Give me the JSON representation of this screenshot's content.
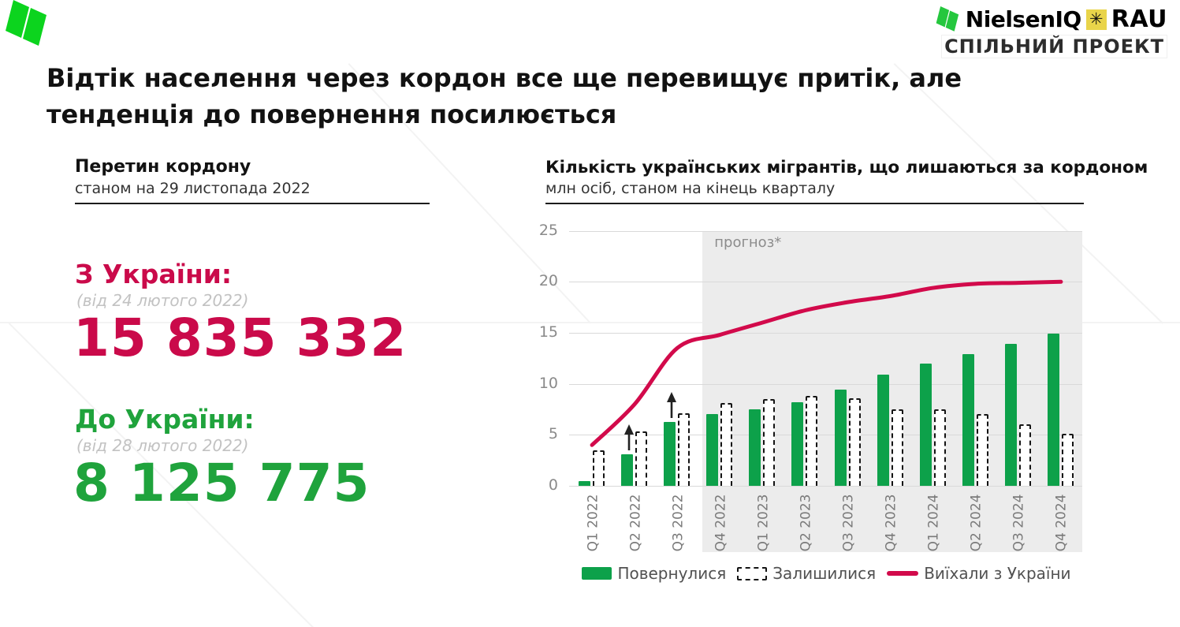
{
  "colors": {
    "brand_green_bright": "#0cd41e",
    "brand_green_mark": "#25c73e",
    "accent_crimson": "#ca0a4a",
    "accent_green": "#1fa33c",
    "bar_green": "#0da14a",
    "line_crimson": "#d20a4b",
    "rau_yellow": "#e9d44a",
    "forecast_bg": "#ececec",
    "gridline": "#d9d9d9"
  },
  "header": {
    "brand": "NielsenIQ",
    "asterisk_icon": "✳",
    "partner": "RAU",
    "subtitle": "СПІЛЬНИЙ ПРОЕКТ"
  },
  "title": {
    "line1": "Відтік населення через кордон все ще перевищує притік, але",
    "line2": "тенденція до повернення посилюється"
  },
  "border_stats": {
    "heading": "Перетин кордону",
    "as_of": "станом на 29 листопада 2022",
    "outflow": {
      "label": "З України:",
      "note": "(від 24 лютого 2022)",
      "value": "15 835 332"
    },
    "inflow": {
      "label": "До України:",
      "note": "(від 28 лютого 2022)",
      "value": "8 125 775"
    }
  },
  "chart": {
    "heading": "Кількість українських мігрантів, що лишаються за кордоном",
    "unit_note": "млн осіб, станом на кінець кварталу",
    "forecast_label": "прогноз*"
  },
  "chart_data": {
    "type": "bar",
    "title": "Кількість українських мігрантів, що лишаються за кордоном",
    "ylabel": "млн осіб",
    "ylim": [
      0,
      25
    ],
    "yticks": [
      0,
      5,
      10,
      15,
      20,
      25
    ],
    "grid": true,
    "legend_position": "bottom",
    "categories": [
      "Q1 2022",
      "Q2 2022",
      "Q3 2022",
      "Q4 2022",
      "Q1 2023",
      "Q2 2023",
      "Q3 2023",
      "Q4 2023",
      "Q1 2024",
      "Q2 2024",
      "Q3 2024",
      "Q4 2024"
    ],
    "forecast_from_category": "Q4 2022",
    "growth_arrows_at": [
      "Q2 2022",
      "Q3 2022"
    ],
    "series": [
      {
        "name": "Повернулися",
        "type": "bar",
        "style": "solid-green",
        "values": [
          0.5,
          3.1,
          6.3,
          7.0,
          7.5,
          8.2,
          9.4,
          10.9,
          12.0,
          12.9,
          13.9,
          14.9
        ]
      },
      {
        "name": "Залишилися",
        "type": "bar",
        "style": "dashed-outline",
        "values": [
          3.5,
          5.3,
          7.1,
          8.1,
          8.5,
          8.8,
          8.6,
          7.5,
          7.5,
          7.0,
          6.0,
          5.1
        ]
      },
      {
        "name": "Виїхали з України",
        "type": "line",
        "style": "solid-crimson",
        "values": [
          4.0,
          8.0,
          13.5,
          14.8,
          16.0,
          17.2,
          18.0,
          18.6,
          19.4,
          19.8,
          19.9,
          20.0
        ]
      }
    ]
  }
}
